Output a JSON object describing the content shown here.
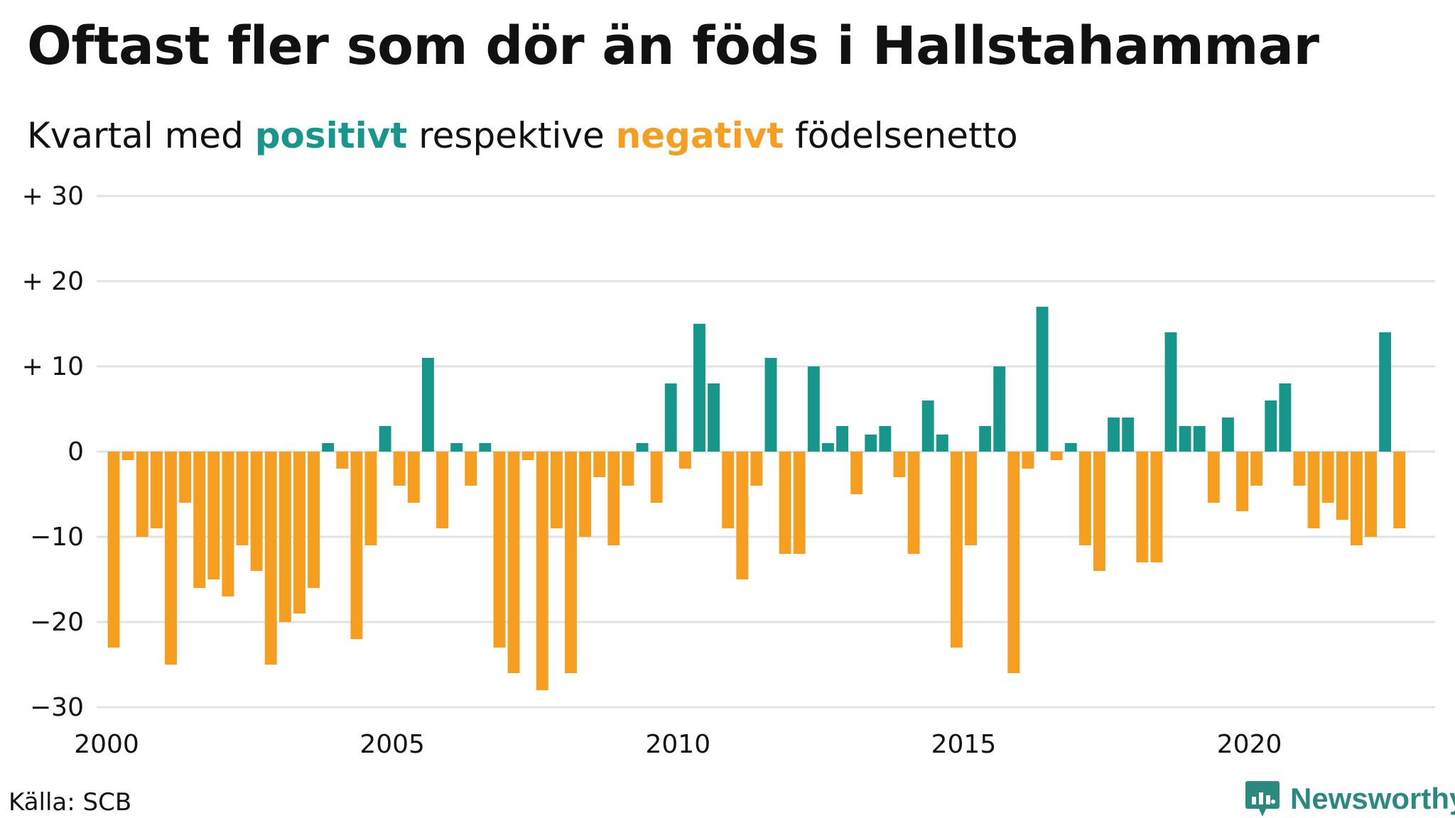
{
  "title": "Oftast fler som dör än föds i Hallstahammar",
  "subtitle": {
    "prefix": "Kvartal med ",
    "positive_word": "positivt",
    "middle": " respektive ",
    "negative_word": "negativt",
    "suffix": " födelsenetto"
  },
  "source": "Källa: SCB",
  "logo_text": "Newsworthy",
  "colors": {
    "positive": "#17978c",
    "negative": "#f59e1f",
    "grid": "#e2e2e2",
    "text": "#111111"
  },
  "chart_data": {
    "type": "bar",
    "x_start": 2000,
    "x_step": 0.25,
    "xlim": [
      2000,
      2023.25
    ],
    "ylim": [
      -30,
      30
    ],
    "y_ticks": [
      {
        "value": 30,
        "label": "+ 30"
      },
      {
        "value": 20,
        "label": "+ 20"
      },
      {
        "value": 10,
        "label": "+ 10"
      },
      {
        "value": 0,
        "label": "0"
      },
      {
        "value": -10,
        "label": "−10"
      },
      {
        "value": -20,
        "label": "−20"
      },
      {
        "value": -30,
        "label": "−30"
      }
    ],
    "x_ticks": [
      {
        "value": 2000,
        "label": "2000"
      },
      {
        "value": 2005,
        "label": "2005"
      },
      {
        "value": 2010,
        "label": "2010"
      },
      {
        "value": 2015,
        "label": "2015"
      },
      {
        "value": 2020,
        "label": "2020"
      }
    ],
    "values": [
      -23,
      -1,
      -10,
      -9,
      -25,
      -6,
      -16,
      -15,
      -17,
      -11,
      -14,
      -25,
      -20,
      -19,
      -16,
      1,
      -2,
      -22,
      -11,
      3,
      -4,
      -6,
      11,
      -9,
      1,
      -4,
      1,
      -23,
      -26,
      -1,
      -28,
      -9,
      -26,
      -10,
      -3,
      -11,
      -4,
      1,
      -6,
      8,
      -2,
      15,
      8,
      -9,
      -15,
      -4,
      11,
      -12,
      -12,
      10,
      1,
      3,
      -5,
      2,
      3,
      -3,
      -12,
      6,
      2,
      -23,
      -11,
      3,
      10,
      -26,
      -2,
      17,
      -1,
      1,
      -11,
      -14,
      4,
      4,
      -13,
      -13,
      14,
      3,
      3,
      -6,
      4,
      -7,
      -4,
      6,
      8,
      -4,
      -9,
      -6,
      -8,
      -11,
      -10,
      14,
      -9
    ],
    "grid": true
  }
}
